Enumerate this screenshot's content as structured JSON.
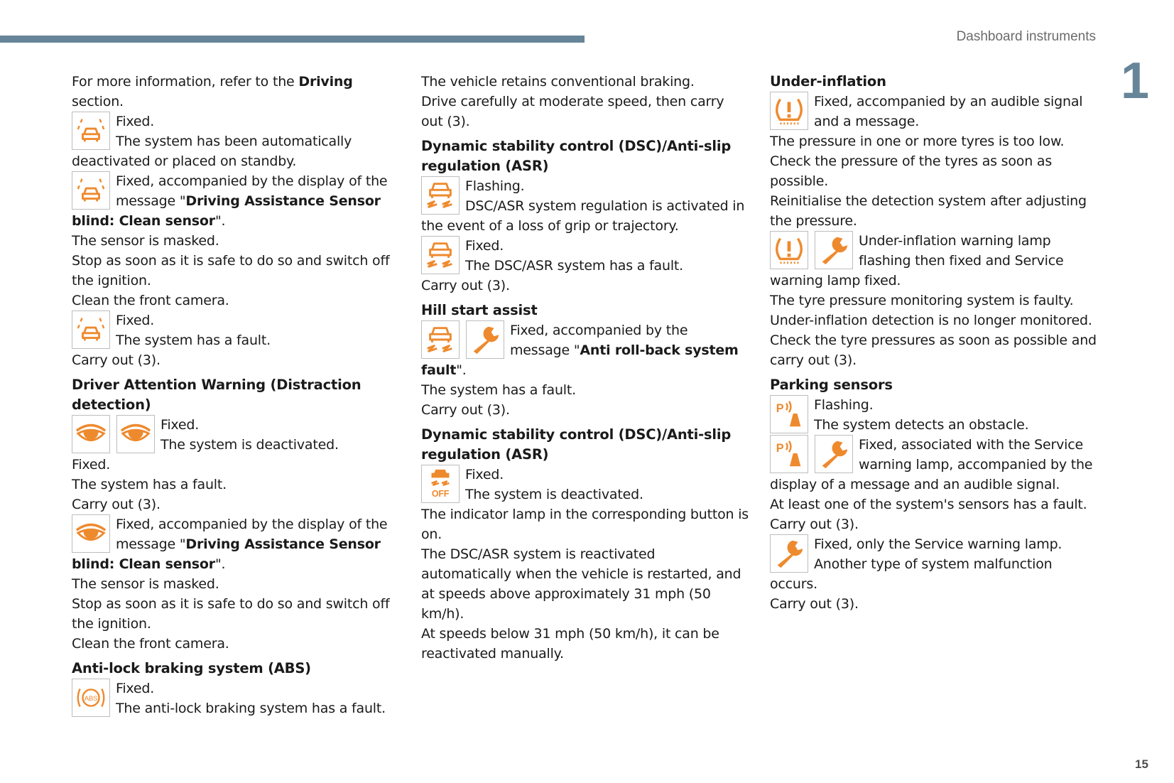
{
  "header": {
    "title": "Dashboard instruments",
    "chapter": "1",
    "page_number": "15"
  },
  "colors": {
    "bar": "#668598",
    "icon": "#EE8A2E"
  },
  "icon_labels": {
    "abs": "ABS",
    "off": "OFF",
    "park": "P"
  },
  "columns": [
    [
      {
        "type": "p",
        "runs": [
          {
            "t": "For more information, refer to the "
          },
          {
            "t": "Driving",
            "b": true
          },
          {
            "t": " section."
          }
        ]
      },
      {
        "type": "entry",
        "icons": [
          "lane-car-icon"
        ],
        "paras": [
          [
            {
              "t": "Fixed."
            }
          ],
          [
            {
              "t": "The system has been automatically deactivated or placed on standby."
            }
          ]
        ]
      },
      {
        "type": "entry",
        "icons": [
          "lane-car-icon"
        ],
        "paras": [
          [
            {
              "t": "Fixed, accompanied by the display of the message \""
            },
            {
              "t": "Driving Assistance Sensor blind: Clean sensor",
              "b": true
            },
            {
              "t": "\"."
            }
          ]
        ]
      },
      {
        "type": "p",
        "runs": [
          {
            "t": "The sensor is masked."
          }
        ]
      },
      {
        "type": "p",
        "runs": [
          {
            "t": "Stop as soon as it is safe to do so and switch off the ignition."
          }
        ]
      },
      {
        "type": "p",
        "runs": [
          {
            "t": "Clean the front camera."
          }
        ]
      },
      {
        "type": "entry",
        "icons": [
          "lane-car-icon"
        ],
        "paras": [
          [
            {
              "t": "Fixed."
            }
          ],
          [
            {
              "t": "The system has a fault."
            }
          ]
        ]
      },
      {
        "type": "p",
        "runs": [
          {
            "t": "Carry out (3)."
          }
        ]
      },
      {
        "type": "h",
        "text": "Driver Attention Warning (Distraction detection)"
      },
      {
        "type": "entry",
        "icons": [
          "eye-icon",
          "eye-icon"
        ],
        "paras": [
          [
            {
              "t": "Fixed."
            }
          ],
          [
            {
              "t": "The system is deactivated."
            }
          ]
        ]
      },
      {
        "type": "p",
        "runs": [
          {
            "t": "Fixed."
          }
        ]
      },
      {
        "type": "p",
        "runs": [
          {
            "t": "The system has a fault."
          }
        ]
      },
      {
        "type": "p",
        "runs": [
          {
            "t": "Carry out (3)."
          }
        ]
      },
      {
        "type": "entry",
        "icons": [
          "eye-icon"
        ],
        "paras": [
          [
            {
              "t": "Fixed, accompanied by the display of the message \""
            },
            {
              "t": "Driving Assistance Sensor blind: Clean sensor",
              "b": true
            },
            {
              "t": "\"."
            }
          ]
        ]
      },
      {
        "type": "p",
        "runs": [
          {
            "t": "The sensor is masked."
          }
        ]
      },
      {
        "type": "p",
        "runs": [
          {
            "t": "Stop as soon as it is safe to do so and switch off the ignition."
          }
        ]
      },
      {
        "type": "p",
        "runs": [
          {
            "t": "Clean the front camera."
          }
        ]
      },
      {
        "type": "h",
        "text": "Anti-lock braking system (ABS)"
      },
      {
        "type": "entry",
        "icons": [
          "abs-icon"
        ],
        "paras": [
          [
            {
              "t": "Fixed."
            }
          ],
          [
            {
              "t": "The anti-lock braking system has a fault."
            }
          ]
        ]
      }
    ],
    [
      {
        "type": "p",
        "runs": [
          {
            "t": "The vehicle retains conventional braking."
          }
        ]
      },
      {
        "type": "p",
        "runs": [
          {
            "t": "Drive carefully at moderate speed, then carry out (3)."
          }
        ]
      },
      {
        "type": "h",
        "text": "Dynamic stability control (DSC)/Anti-slip regulation (ASR)"
      },
      {
        "type": "entry",
        "icons": [
          "dsc-icon"
        ],
        "paras": [
          [
            {
              "t": "Flashing."
            }
          ],
          [
            {
              "t": "DSC/ASR system regulation is activated in the event of a loss of grip or trajectory."
            }
          ]
        ]
      },
      {
        "type": "entry",
        "icons": [
          "dsc-icon"
        ],
        "paras": [
          [
            {
              "t": "Fixed."
            }
          ],
          [
            {
              "t": "The DSC/ASR system has a fault."
            }
          ]
        ]
      },
      {
        "type": "p",
        "runs": [
          {
            "t": "Carry out (3)."
          }
        ]
      },
      {
        "type": "h",
        "text": "Hill start assist"
      },
      {
        "type": "entry",
        "icons": [
          "dsc-icon",
          "wrench-icon"
        ],
        "paras": [
          [
            {
              "t": "Fixed, accompanied by the message \""
            },
            {
              "t": "Anti roll-back system fault",
              "b": true
            },
            {
              "t": "\"."
            }
          ]
        ]
      },
      {
        "type": "p",
        "runs": [
          {
            "t": "The system has a fault."
          }
        ]
      },
      {
        "type": "p",
        "runs": [
          {
            "t": "Carry out (3)."
          }
        ]
      },
      {
        "type": "h",
        "text": "Dynamic stability control (DSC)/Anti-slip regulation (ASR)"
      },
      {
        "type": "entry",
        "icons": [
          "dsc-off-icon"
        ],
        "paras": [
          [
            {
              "t": "Fixed."
            }
          ],
          [
            {
              "t": "The system is deactivated."
            }
          ]
        ]
      },
      {
        "type": "p",
        "runs": [
          {
            "t": "The indicator lamp in the corresponding button is on."
          }
        ]
      },
      {
        "type": "p",
        "runs": [
          {
            "t": "The DSC/ASR system is reactivated automatically when the vehicle is restarted, and at speeds above approximately 31 mph (50 km/h)."
          }
        ]
      },
      {
        "type": "p",
        "runs": [
          {
            "t": "At speeds below 31 mph (50 km/h), it can be reactivated manually."
          }
        ]
      }
    ],
    [
      {
        "type": "h",
        "text": "Under-inflation"
      },
      {
        "type": "entry",
        "icons": [
          "tyre-pressure-icon"
        ],
        "paras": [
          [
            {
              "t": "Fixed, accompanied by an audible signal and a message."
            }
          ]
        ]
      },
      {
        "type": "p",
        "runs": [
          {
            "t": "The pressure in one or more tyres is too low."
          }
        ]
      },
      {
        "type": "p",
        "runs": [
          {
            "t": "Check the pressure of the tyres as soon as possible."
          }
        ]
      },
      {
        "type": "p",
        "runs": [
          {
            "t": "Reinitialise the detection system after adjusting the pressure."
          }
        ]
      },
      {
        "type": "entry",
        "icons": [
          "tyre-pressure-icon",
          "wrench-icon"
        ],
        "paras": [
          [
            {
              "t": "Under-inflation warning lamp flashing then fixed and Service warning lamp fixed."
            }
          ]
        ]
      },
      {
        "type": "p",
        "runs": [
          {
            "t": "The tyre pressure monitoring system is faulty."
          }
        ]
      },
      {
        "type": "p",
        "runs": [
          {
            "t": "Under-inflation detection is no longer monitored."
          }
        ]
      },
      {
        "type": "p",
        "runs": [
          {
            "t": "Check the tyre pressures as soon as possible and carry out (3)."
          }
        ]
      },
      {
        "type": "h",
        "text": "Parking sensors"
      },
      {
        "type": "entry",
        "icons": [
          "parking-sensor-icon"
        ],
        "paras": [
          [
            {
              "t": "Flashing."
            }
          ],
          [
            {
              "t": "The system detects an obstacle."
            }
          ]
        ]
      },
      {
        "type": "entry",
        "icons": [
          "parking-sensor-icon",
          "wrench-icon"
        ],
        "paras": [
          [
            {
              "t": "Fixed, associated with the Service warning lamp, accompanied by the display of a message and an audible signal."
            }
          ]
        ]
      },
      {
        "type": "p",
        "runs": [
          {
            "t": "At least one of the system's sensors has a fault."
          }
        ]
      },
      {
        "type": "p",
        "runs": [
          {
            "t": "Carry out (3)."
          }
        ]
      },
      {
        "type": "entry",
        "icons": [
          "wrench-icon"
        ],
        "paras": [
          [
            {
              "t": "Fixed, only the Service warning lamp."
            }
          ],
          [
            {
              "t": "Another type of system malfunction occurs."
            }
          ]
        ]
      },
      {
        "type": "p",
        "runs": [
          {
            "t": "Carry out (3)."
          }
        ]
      }
    ]
  ]
}
